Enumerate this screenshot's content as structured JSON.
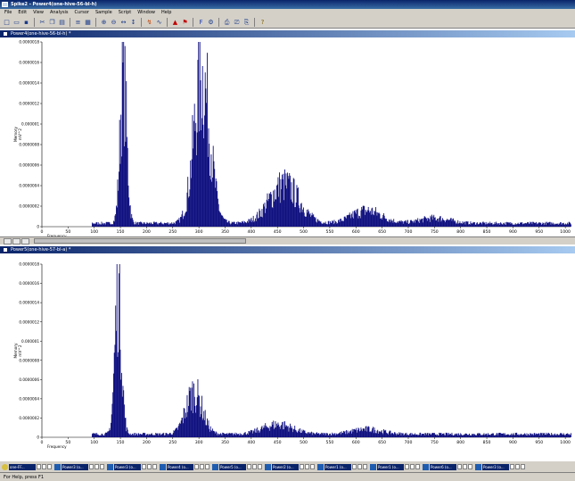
{
  "window": {
    "title": "Spike2 - Power4(one-hive-56-bl-h)"
  },
  "menu": [
    "File",
    "Edit",
    "View",
    "Analysis",
    "Cursor",
    "Sample",
    "Script",
    "Window",
    "Help"
  ],
  "toolbar_icons": [
    "new-file-icon",
    "open-file-icon",
    "save-icon",
    "separator",
    "cut-icon",
    "copy-icon",
    "paste-icon",
    "separator",
    "script-icon",
    "grid-icon",
    "separator",
    "zoom-in-icon",
    "zoom-out-icon",
    "x-axis-icon",
    "y-axis-icon",
    "separator",
    "cursor-icon",
    "trace-icon",
    "separator",
    "marker-icon",
    "flag-icon",
    "separator",
    "font-icon",
    "options-icon",
    "separator",
    "print-icon",
    "print-preview-icon",
    "print-setup-icon",
    "separator",
    "help-icon"
  ],
  "panes": [
    {
      "title": "Power4(one-hive-56-bl-h) *",
      "ylabel": "Memory\nmV^2",
      "xlabel": "Frequency",
      "yticks": [
        "0.0000018",
        "0.0000016",
        "0.0000014",
        "0.0000012",
        "0.000001",
        "0.0000008",
        "0.0000006",
        "0.0000004",
        "0.0000002",
        "0"
      ],
      "xticks": [
        "0",
        "50",
        "100",
        "150",
        "200",
        "250",
        "300",
        "350",
        "400",
        "450",
        "500",
        "550",
        "600",
        "650",
        "700",
        "750",
        "800",
        "850",
        "900",
        "950",
        "1000"
      ],
      "chart_data": {
        "type": "area",
        "xlim": [
          0,
          1010
        ],
        "ylim": [
          0,
          1.8e-06
        ],
        "peaks": [
          {
            "x": 155,
            "y": 1.7e-06
          },
          {
            "x": 305,
            "y": 1.7e-06
          },
          {
            "x": 462,
            "y": 4.5e-07
          },
          {
            "x": 620,
            "y": 1.5e-07
          },
          {
            "x": 750,
            "y": 6e-08
          }
        ]
      }
    },
    {
      "title": "Power5(one-hive-57-bl-a) *",
      "ylabel": "Memory\nmV^2",
      "xlabel": "Frequency",
      "yticks": [
        "0.0000018",
        "0.0000016",
        "0.0000014",
        "0.0000012",
        "0.000001",
        "0.0000008",
        "0.0000006",
        "0.0000004",
        "0.0000002",
        "0"
      ],
      "xticks": [
        "0",
        "50",
        "100",
        "150",
        "200",
        "250",
        "300",
        "350",
        "400",
        "450",
        "500",
        "550",
        "600",
        "650",
        "700",
        "750",
        "800",
        "850",
        "900",
        "950",
        "1000"
      ],
      "chart_data": {
        "type": "area",
        "xlim": [
          0,
          1010
        ],
        "ylim": [
          0,
          1.8e-06
        ],
        "peaks": [
          {
            "x": 145,
            "y": 1.8e-06
          },
          {
            "x": 290,
            "y": 5.2e-07
          },
          {
            "x": 450,
            "y": 1.2e-07
          },
          {
            "x": 620,
            "y": 6e-08
          }
        ]
      }
    }
  ],
  "taskbar": [
    {
      "label": "one-FF...",
      "first": true
    },
    {
      "label": "Power3 (o..."
    },
    {
      "label": "Power3 (o..."
    },
    {
      "label": "Power4 (o..."
    },
    {
      "label": "Power5 (o..."
    },
    {
      "label": "Power2 (o..."
    },
    {
      "label": "Power1 (o..."
    },
    {
      "label": "Power1 (o..."
    },
    {
      "label": "Power6 (o..."
    },
    {
      "label": "Power3 (o..."
    }
  ],
  "status": "For Help, press F1",
  "colors": {
    "trace": "#101080",
    "grid": "#999999"
  }
}
